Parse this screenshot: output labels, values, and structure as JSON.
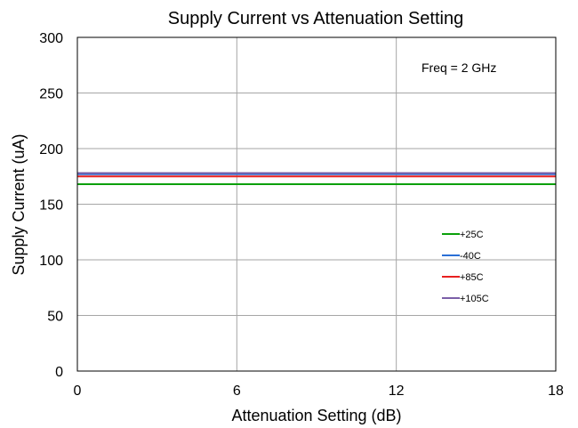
{
  "chart_data": {
    "type": "line",
    "title": "Supply Current vs Attenuation Setting",
    "xlabel": "Attenuation Setting (dB)",
    "ylabel": "Supply Current (uA)",
    "xlim": [
      0,
      18
    ],
    "ylim": [
      0,
      300
    ],
    "xticks": [
      0,
      6,
      12,
      18
    ],
    "yticks": [
      0,
      50,
      100,
      150,
      200,
      250,
      300
    ],
    "grid": true,
    "annotation": "Freq = 2 GHz",
    "legend_position": "right",
    "x": [
      0,
      18
    ],
    "series": [
      {
        "name": "+25C",
        "color": "#0aa00a",
        "values": [
          168,
          168
        ]
      },
      {
        "name": "-40C",
        "color": "#2a6fd6",
        "values": [
          177,
          177
        ]
      },
      {
        "name": "+85C",
        "color": "#e82020",
        "values": [
          175,
          175
        ]
      },
      {
        "name": "+105C",
        "color": "#7b5fa8",
        "values": [
          178,
          178
        ]
      }
    ]
  }
}
